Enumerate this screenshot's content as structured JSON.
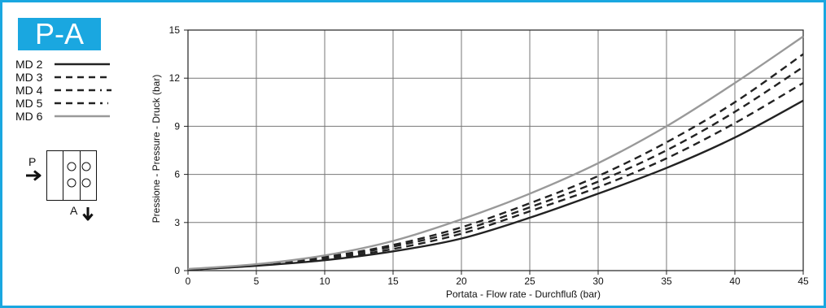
{
  "badge": {
    "label": "P-A"
  },
  "legend": {
    "items": [
      {
        "label": "MD 2",
        "style": "solid",
        "color": "#222222"
      },
      {
        "label": "MD 3",
        "style": "dashed",
        "color": "#222222"
      },
      {
        "label": "MD 4",
        "style": "dashed",
        "color": "#222222"
      },
      {
        "label": "MD 5",
        "style": "dashed",
        "color": "#222222"
      },
      {
        "label": "MD 6",
        "style": "solid",
        "color": "#999999"
      }
    ]
  },
  "schema": {
    "port_p": "P",
    "port_a": "A"
  },
  "colors": {
    "accent": "#1aa7e0",
    "grid": "#777777",
    "axis": "#222222"
  },
  "chart_data": {
    "type": "line",
    "title": "",
    "xlabel": "Portata - Flow rate - Durchfluß (bar)",
    "ylabel": "Pressione - Pressure - Druck (bar)",
    "xlim": [
      0,
      45
    ],
    "ylim": [
      0,
      15
    ],
    "x_ticks": [
      "0",
      "5",
      "10",
      "15",
      "20",
      "25",
      "30",
      "35",
      "40",
      "45"
    ],
    "y_ticks": [
      "0",
      "3",
      "6",
      "9",
      "12",
      "15"
    ],
    "grid": true,
    "x": [
      0,
      5,
      10,
      15,
      20,
      25,
      30,
      35,
      40,
      45
    ],
    "series": [
      {
        "name": "MD 2",
        "style": "solid",
        "color": "#222222",
        "values": [
          0.05,
          0.3,
          0.65,
          1.2,
          2.0,
          3.3,
          4.8,
          6.4,
          8.3,
          10.6
        ]
      },
      {
        "name": "MD 3",
        "style": "dashed",
        "color": "#222222",
        "values": [
          0.05,
          0.32,
          0.72,
          1.35,
          2.3,
          3.7,
          5.2,
          7.0,
          9.2,
          11.7
        ]
      },
      {
        "name": "MD 4",
        "style": "dashed",
        "color": "#222222",
        "values": [
          0.05,
          0.35,
          0.8,
          1.5,
          2.5,
          3.95,
          5.55,
          7.5,
          9.9,
          12.7
        ]
      },
      {
        "name": "MD 5",
        "style": "dashed",
        "color": "#222222",
        "values": [
          0.05,
          0.37,
          0.85,
          1.6,
          2.7,
          4.2,
          5.9,
          8.0,
          10.5,
          13.5
        ]
      },
      {
        "name": "MD 6",
        "style": "solid",
        "color": "#999999",
        "values": [
          0.1,
          0.4,
          0.95,
          1.85,
          3.2,
          4.8,
          6.7,
          9.0,
          11.7,
          14.6
        ]
      }
    ]
  }
}
